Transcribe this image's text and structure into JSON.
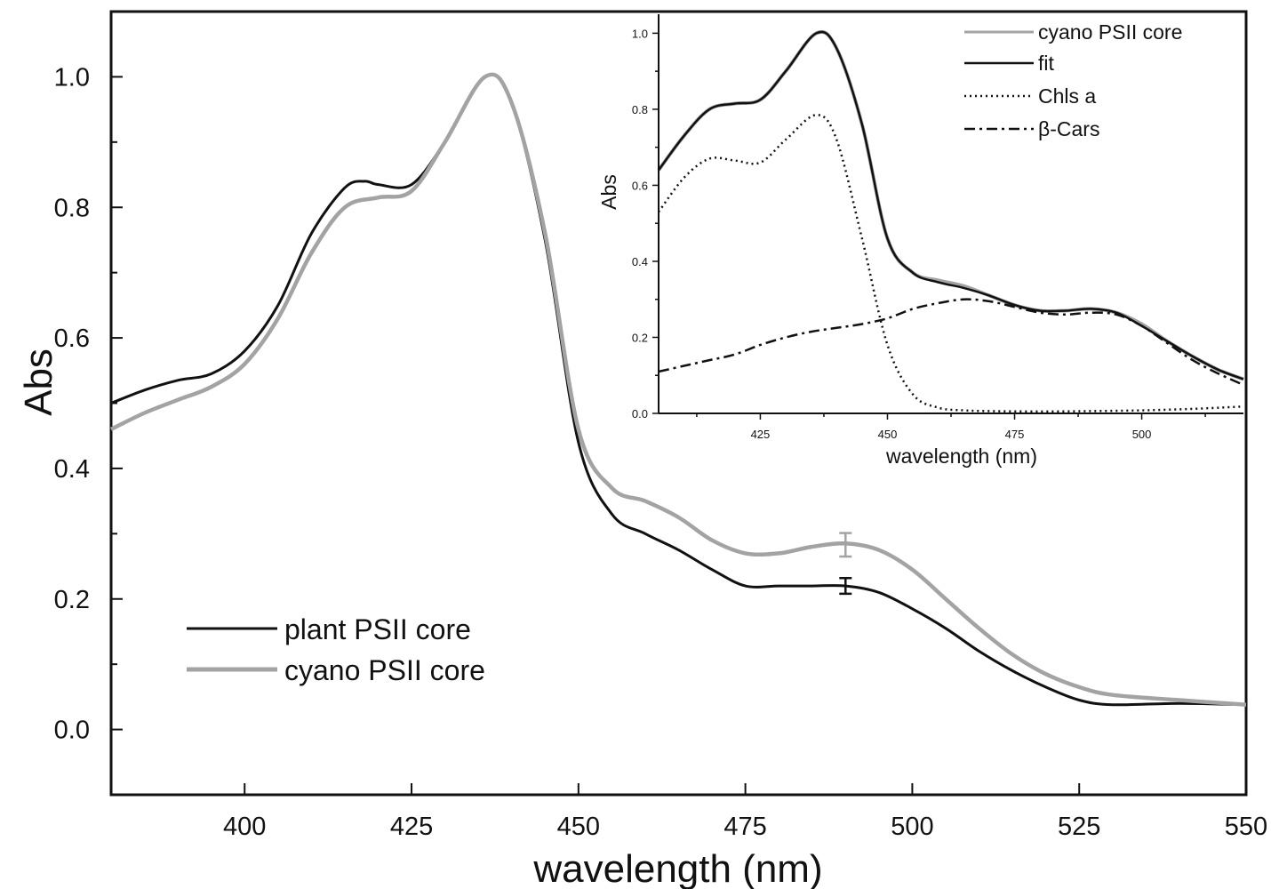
{
  "chart_data": [
    {
      "type": "line",
      "title": "",
      "xlabel": "wavelength (nm)",
      "ylabel": "Abs",
      "xlim": [
        380,
        550
      ],
      "ylim": [
        -0.1,
        1.1
      ],
      "xticks": [
        "400",
        "425",
        "450",
        "475",
        "500",
        "525",
        "550"
      ],
      "yticks": [
        "0.0",
        "0.2",
        "0.4",
        "0.6",
        "0.8",
        "1.0"
      ],
      "legend_position": "bottom-left",
      "series": [
        {
          "name": "plant PSII core",
          "color": "#111111",
          "x": [
            380,
            385,
            390,
            395,
            400,
            405,
            410,
            415,
            418,
            420,
            425,
            430,
            436,
            440,
            445,
            450,
            455,
            460,
            465,
            470,
            475,
            480,
            485,
            490,
            495,
            500,
            505,
            510,
            515,
            520,
            525,
            530,
            540,
            550
          ],
          "y": [
            0.5,
            0.52,
            0.535,
            0.545,
            0.58,
            0.65,
            0.76,
            0.83,
            0.84,
            0.835,
            0.835,
            0.9,
            1.0,
            0.96,
            0.75,
            0.44,
            0.33,
            0.3,
            0.275,
            0.245,
            0.22,
            0.22,
            0.22,
            0.22,
            0.21,
            0.185,
            0.155,
            0.12,
            0.09,
            0.065,
            0.045,
            0.038,
            0.04,
            0.038
          ]
        },
        {
          "name": "cyano PSII core",
          "color": "#a3a3a3",
          "x": [
            380,
            385,
            390,
            395,
            400,
            405,
            410,
            415,
            420,
            425,
            430,
            436,
            440,
            445,
            450,
            455,
            460,
            465,
            470,
            475,
            480,
            485,
            490,
            495,
            500,
            505,
            510,
            515,
            520,
            525,
            530,
            540,
            550
          ],
          "y": [
            0.46,
            0.485,
            0.505,
            0.525,
            0.56,
            0.63,
            0.73,
            0.8,
            0.815,
            0.825,
            0.9,
            1.0,
            0.96,
            0.76,
            0.46,
            0.37,
            0.35,
            0.325,
            0.29,
            0.27,
            0.27,
            0.28,
            0.285,
            0.275,
            0.245,
            0.2,
            0.155,
            0.115,
            0.085,
            0.065,
            0.053,
            0.045,
            0.038
          ]
        }
      ],
      "error_bars": [
        {
          "series": "plant PSII core",
          "x": 490,
          "y": 0.22,
          "err": 0.012
        },
        {
          "series": "cyano PSII core",
          "x": 490,
          "y": 0.283,
          "err": 0.018
        }
      ]
    },
    {
      "type": "line",
      "title": "",
      "xlabel": "wavelength (nm)",
      "ylabel": "Abs",
      "xlim": [
        405,
        520
      ],
      "ylim": [
        0.0,
        1.05
      ],
      "xticks": [
        "425",
        "450",
        "475",
        "500"
      ],
      "yticks": [
        "0.0",
        "0.2",
        "0.4",
        "0.6",
        "0.8",
        "1.0"
      ],
      "legend_position": "top-right",
      "series": [
        {
          "name": "cyano PSII core",
          "color": "#a3a3a3",
          "style": "solid",
          "x": [
            405,
            410,
            415,
            420,
            425,
            430,
            436,
            440,
            445,
            450,
            455,
            460,
            465,
            470,
            475,
            480,
            485,
            490,
            495,
            500,
            505,
            510,
            515,
            520
          ],
          "y": [
            0.64,
            0.73,
            0.8,
            0.815,
            0.825,
            0.9,
            1.0,
            0.96,
            0.76,
            0.46,
            0.37,
            0.35,
            0.335,
            0.31,
            0.285,
            0.27,
            0.27,
            0.275,
            0.265,
            0.235,
            0.19,
            0.15,
            0.115,
            0.09
          ]
        },
        {
          "name": "fit",
          "color": "#111111",
          "style": "solid",
          "x": [
            405,
            410,
            415,
            420,
            425,
            430,
            436,
            440,
            445,
            450,
            455,
            460,
            465,
            470,
            475,
            480,
            485,
            490,
            495,
            500,
            505,
            510,
            515,
            520
          ],
          "y": [
            0.64,
            0.73,
            0.8,
            0.815,
            0.825,
            0.9,
            1.0,
            0.96,
            0.76,
            0.46,
            0.37,
            0.345,
            0.33,
            0.31,
            0.285,
            0.27,
            0.27,
            0.275,
            0.265,
            0.23,
            0.19,
            0.15,
            0.115,
            0.09
          ]
        },
        {
          "name": "Chls a",
          "color": "#111111",
          "style": "dotted",
          "x": [
            405,
            410,
            415,
            420,
            425,
            430,
            436,
            440,
            445,
            450,
            455,
            460,
            465,
            470,
            480,
            490,
            500,
            510,
            520
          ],
          "y": [
            0.53,
            0.62,
            0.67,
            0.665,
            0.66,
            0.72,
            0.785,
            0.72,
            0.46,
            0.18,
            0.05,
            0.015,
            0.008,
            0.006,
            0.005,
            0.006,
            0.008,
            0.012,
            0.018
          ]
        },
        {
          "name": "β-Cars",
          "color": "#111111",
          "style": "dashdot",
          "x": [
            405,
            410,
            415,
            420,
            425,
            430,
            435,
            440,
            445,
            450,
            455,
            460,
            465,
            470,
            475,
            480,
            485,
            490,
            495,
            500,
            505,
            510,
            515,
            520
          ],
          "y": [
            0.11,
            0.125,
            0.14,
            0.155,
            0.18,
            0.2,
            0.215,
            0.225,
            0.235,
            0.25,
            0.275,
            0.29,
            0.3,
            0.295,
            0.28,
            0.265,
            0.26,
            0.265,
            0.26,
            0.23,
            0.185,
            0.14,
            0.105,
            0.075
          ]
        }
      ]
    }
  ]
}
